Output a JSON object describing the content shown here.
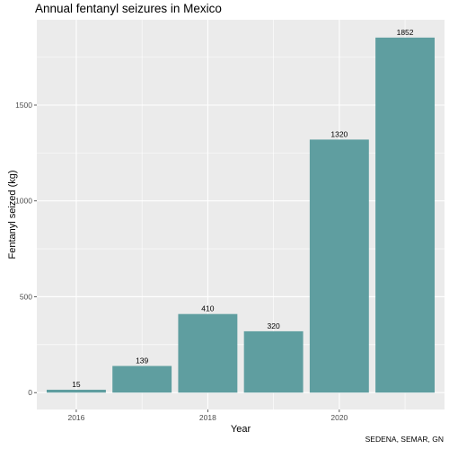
{
  "chart_data": {
    "type": "bar",
    "title": "Annual fentanyl seizures in Mexico",
    "xlabel": "Year",
    "ylabel": "Fentanyl seized (kg)",
    "caption": "SEDENA, SEMAR, GN",
    "x": [
      2016,
      2017,
      2018,
      2019,
      2020,
      2021
    ],
    "values": [
      15,
      139,
      410,
      320,
      1320,
      1852
    ],
    "xticks": [
      "2016",
      "2018",
      "2020"
    ],
    "yticks": [
      "0",
      "500",
      "1000",
      "1500"
    ],
    "ylim": [
      -88,
      1945
    ],
    "xlim": [
      2015.4,
      2021.6
    ],
    "bar_color": "#5f9ea0",
    "panel_color": "#ebebeb",
    "grid": true
  }
}
